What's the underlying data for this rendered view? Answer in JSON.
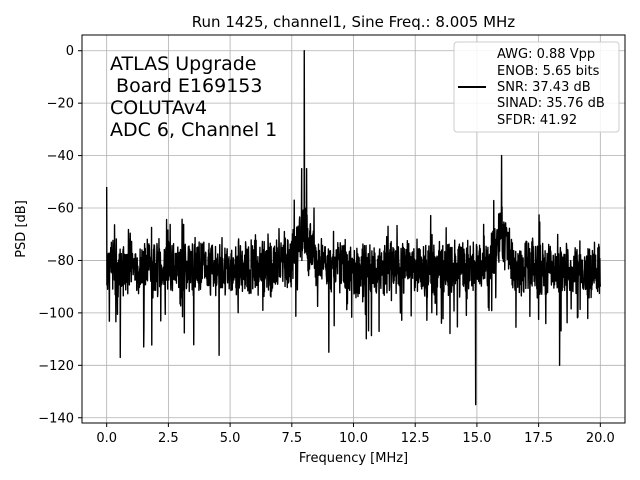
{
  "chart_data": {
    "type": "line",
    "title": "Run 1425, channel1, Sine Freq.: 8.005 MHz",
    "xlabel": "Frequency [MHz]",
    "ylabel": "PSD [dB]",
    "xlim": [
      -1.0,
      21.0
    ],
    "ylim": [
      -142.0,
      6.0
    ],
    "xticks": [
      0.0,
      2.5,
      5.0,
      7.5,
      10.0,
      12.5,
      15.0,
      17.5,
      20.0
    ],
    "xtick_labels": [
      "0.0",
      "2.5",
      "5.0",
      "7.5",
      "10.0",
      "12.5",
      "15.0",
      "17.5",
      "20.0"
    ],
    "yticks": [
      0,
      -20,
      -40,
      -60,
      -80,
      -100,
      -120,
      -140
    ],
    "ytick_labels": [
      "0",
      "−20",
      "−40",
      "−60",
      "−80",
      "−100",
      "−120",
      "−140"
    ],
    "grid": true,
    "line_color": "#000000",
    "annotation": [
      "ATLAS Upgrade",
      " Board E169153",
      "COLUTAv4",
      "ADC 6, Channel 1"
    ],
    "legend": {
      "placement": "top-right",
      "entries": [
        "AWG: 0.88 Vpp",
        "ENOB: 5.65 bits",
        "SNR: 37.43 dB",
        "SINAD: 35.76 dB",
        "SFDR: 41.92"
      ]
    },
    "series": [
      {
        "name": "PSD",
        "noise_floor_db": -83,
        "features": [
          {
            "x": 0.0,
            "y": -52
          },
          {
            "x": 0.1,
            "y": -88
          },
          {
            "x": 0.55,
            "y": -117
          },
          {
            "x": 1.5,
            "y": -113
          },
          {
            "x": 7.2,
            "y": -69
          },
          {
            "x": 7.6,
            "y": -57
          },
          {
            "x": 7.9,
            "y": -45
          },
          {
            "x": 8.005,
            "y": 0
          },
          {
            "x": 8.1,
            "y": -45
          },
          {
            "x": 8.4,
            "y": -60
          },
          {
            "x": 8.8,
            "y": -80
          },
          {
            "x": 9.0,
            "y": -115
          },
          {
            "x": 14.95,
            "y": -135
          },
          {
            "x": 15.75,
            "y": -72
          },
          {
            "x": 16.0,
            "y": -40
          },
          {
            "x": 16.4,
            "y": -72
          },
          {
            "x": 18.35,
            "y": -120
          },
          {
            "x": 20.0,
            "y": -90
          }
        ]
      }
    ]
  }
}
